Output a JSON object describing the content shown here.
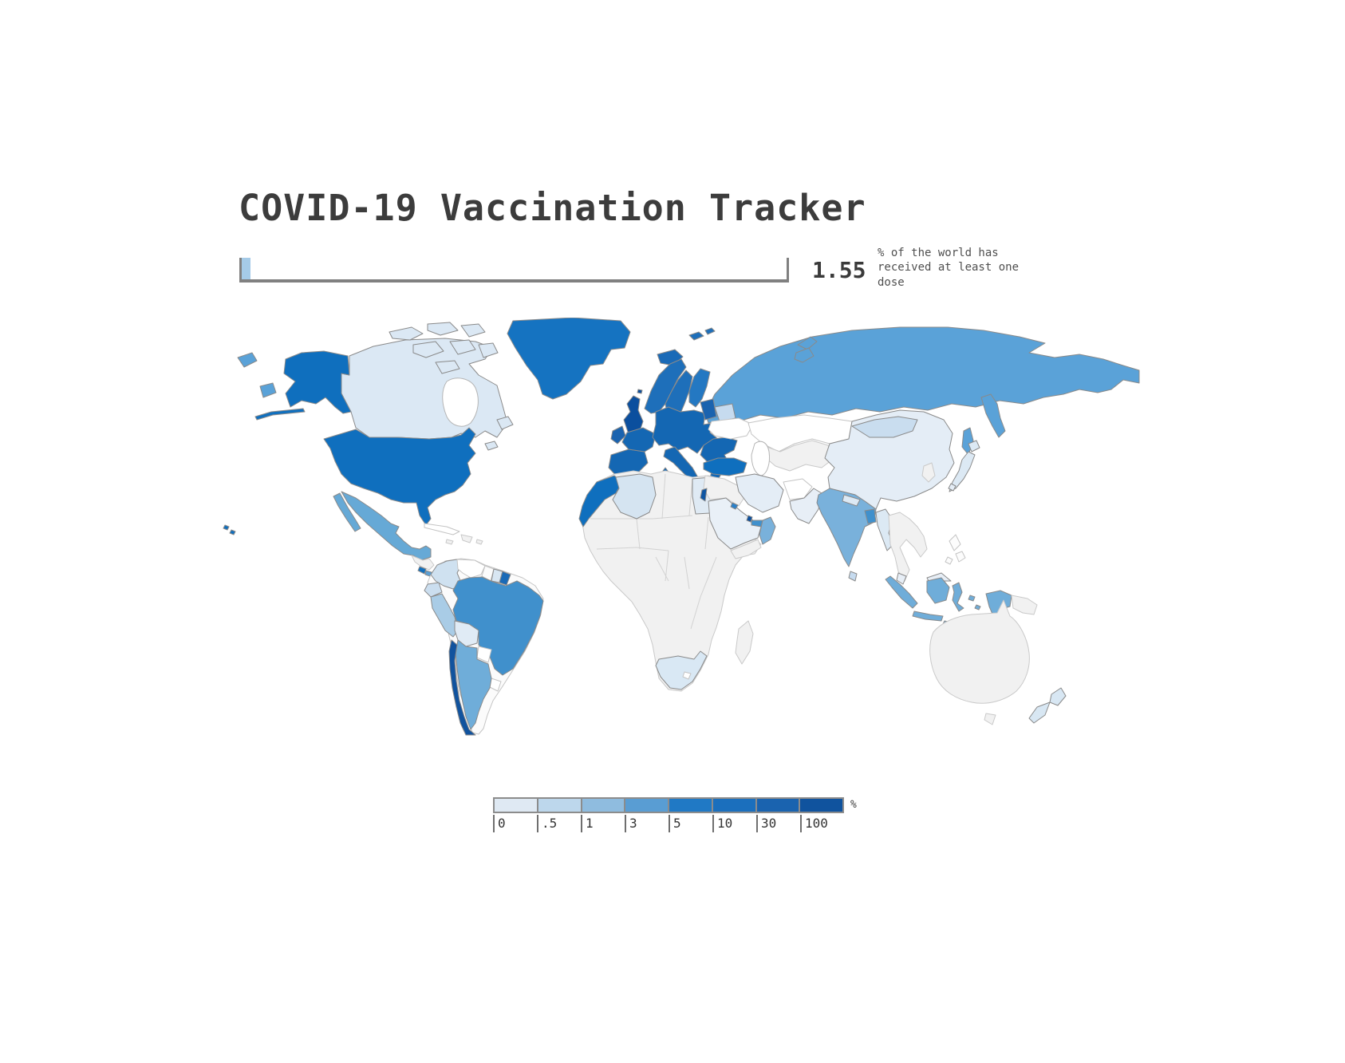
{
  "title": "COVID-19 Vaccination Tracker",
  "stat": {
    "value": "1.55",
    "caption": "% of the world has received at least one dose"
  },
  "progress": {
    "percent": 1.55,
    "max": 100,
    "fill_color": "#a5cbe8",
    "track_border_color": "#808080"
  },
  "legend": {
    "unit": "%",
    "labels": [
      "0",
      ".5",
      "1",
      "3",
      "5",
      "10",
      "30",
      "100"
    ],
    "colors": [
      "#dfe9f3",
      "#bdd7ec",
      "#8fbcdf",
      "#599dd3",
      "#2079c5",
      "#1b6fbd",
      "#1a63af",
      "#10539e"
    ]
  },
  "chart_data": {
    "type": "choropleth",
    "title": "COVID-19 Vaccination Tracker",
    "metric": "share of population that has received at least one vaccine dose (%)",
    "world_value_percent": 1.55,
    "legend_thresholds_percent": [
      0,
      0.5,
      1,
      3,
      5,
      10,
      30,
      100
    ],
    "legend_colors": [
      "#dfe9f3",
      "#bdd7ec",
      "#8fbcdf",
      "#599dd3",
      "#2079c5",
      "#1b6fbd",
      "#1a63af",
      "#10539e"
    ],
    "no_data_color": "#f1f1f1",
    "white_no_data_color": "#ffffff",
    "countries": {
      "canada": {
        "bucket": "0-0.5",
        "color": "#dbe8f4"
      },
      "usa": {
        "bucket": "10-30",
        "color": "#0f6fbe"
      },
      "greenland": {
        "bucket": "5-10",
        "color": "#1573c1"
      },
      "mexico": {
        "bucket": "3-5",
        "color": "#66a9d6"
      },
      "costa_rica": {
        "bucket": "10-30",
        "color": "#0f6fbe"
      },
      "panama": {
        "bucket": "3-5",
        "color": "#5ba0d5"
      },
      "cuba": {
        "bucket": "no data",
        "color": "#ffffff"
      },
      "colombia": {
        "bucket": "0.5-1",
        "color": "#cfe1f0"
      },
      "venezuela": {
        "bucket": "no data",
        "color": "#ffffff"
      },
      "guyana": {
        "bucket": "no data",
        "color": "#fcfcfc"
      },
      "suriname": {
        "bucket": "0-0.5",
        "color": "#d8e6f2"
      },
      "french_guiana": {
        "bucket": "10-30",
        "color": "#1a6ab7"
      },
      "ecuador": {
        "bucket": "0.5-1",
        "color": "#cbdeef"
      },
      "peru": {
        "bucket": "1-3",
        "color": "#a9cce6"
      },
      "bolivia": {
        "bucket": "0-0.5",
        "color": "#e0ebf5"
      },
      "brazil": {
        "bucket": "5-10",
        "color": "#4090cc"
      },
      "paraguay": {
        "bucket": "no data",
        "color": "#ffffff"
      },
      "uruguay": {
        "bucket": "no data",
        "color": "#ffffff"
      },
      "argentina": {
        "bucket": "3-5",
        "color": "#6fadd9"
      },
      "chile": {
        "bucket": "30-100",
        "color": "#11539e"
      },
      "iceland": {
        "bucket": "10-30",
        "color": "#1a6ab7"
      },
      "uk": {
        "bucket": "30-100",
        "color": "#0b4f9e"
      },
      "ireland": {
        "bucket": "30-100",
        "color": "#1a63af"
      },
      "europe_mainland": {
        "bucket": "10-30",
        "color": "#1467b3"
      },
      "norway_sweden": {
        "bucket": "10-30",
        "color": "#1e6fba"
      },
      "finland": {
        "bucket": "10-30",
        "color": "#2478c2"
      },
      "denmark": {
        "bucket": "30-100",
        "color": "#0d55a3"
      },
      "svalbard": {
        "bucket": "10-30",
        "color": "#1e6fba"
      },
      "baltics": {
        "bucket": "30-100",
        "color": "#1a63af"
      },
      "belarus": {
        "bucket": "0.5-1",
        "color": "#c6dbef"
      },
      "ukraine": {
        "bucket": "no data",
        "color": "#ffffff"
      },
      "russia": {
        "bucket": "3-5",
        "color": "#5aa2d8"
      },
      "turkey": {
        "bucket": "10-30",
        "color": "#0f6fbe"
      },
      "azerbaijan": {
        "bucket": "1-3",
        "color": "#9cc5e3"
      },
      "morocco": {
        "bucket": "10-30",
        "color": "#0f6fbe"
      },
      "algeria": {
        "bucket": "0-0.5",
        "color": "#d5e4f1"
      },
      "egypt": {
        "bucket": "0-0.5",
        "color": "#dfeaf4"
      },
      "israel": {
        "bucket": "30-100",
        "color": "#0d55a3"
      },
      "saudi_arabia": {
        "bucket": "0-0.5",
        "color": "#e9f0f7"
      },
      "kuwait": {
        "bucket": "5-10",
        "color": "#2b80c8"
      },
      "qatar": {
        "bucket": "30-100",
        "color": "#0b4f9e"
      },
      "uae": {
        "bucket": "5-10",
        "color": "#4090cc"
      },
      "oman": {
        "bucket": "3-5",
        "color": "#79b1db"
      },
      "iran": {
        "bucket": "0-0.5",
        "color": "#e4edf6"
      },
      "afghanistan": {
        "bucket": "no data",
        "color": "#ffffff"
      },
      "pakistan": {
        "bucket": "0-0.5",
        "color": "#e7eef6"
      },
      "kazakhstan": {
        "bucket": "no data",
        "color": "#ffffff"
      },
      "india": {
        "bucket": "3-5",
        "color": "#79b1db"
      },
      "nepal": {
        "bucket": "0-0.5",
        "color": "#dce9f4"
      },
      "bangladesh": {
        "bucket": "5-10",
        "color": "#4090cc"
      },
      "sri_lanka": {
        "bucket": "0.5-1",
        "color": "#c6dbef"
      },
      "china": {
        "bucket": "0-0.5",
        "color": "#e4edf6"
      },
      "mongolia": {
        "bucket": "0.5-1",
        "color": "#c9ddef"
      },
      "japan": {
        "bucket": "0-0.5",
        "color": "#dce9f4"
      },
      "taiwan": {
        "bucket": "0-0.5",
        "color": "#e4edf6"
      },
      "myanmar": {
        "bucket": "0-0.5",
        "color": "#dce9f4"
      },
      "malaysia": {
        "bucket": "0-0.5",
        "color": "#e7eef6"
      },
      "philippines": {
        "bucket": "no data",
        "color": "#fcfcfc"
      },
      "indonesia": {
        "bucket": "3-5",
        "color": "#6fadd9"
      },
      "new_zealand": {
        "bucket": "0.5-1",
        "color": "#d8e7f3"
      },
      "south_africa": {
        "bucket": "0.5-1",
        "color": "#d9e8f4"
      },
      "hawaii_us": {
        "bucket": "10-30",
        "color": "#0f6fbe"
      },
      "alaska_us": {
        "bucket": "10-30",
        "color": "#0f6fbe"
      }
    }
  }
}
